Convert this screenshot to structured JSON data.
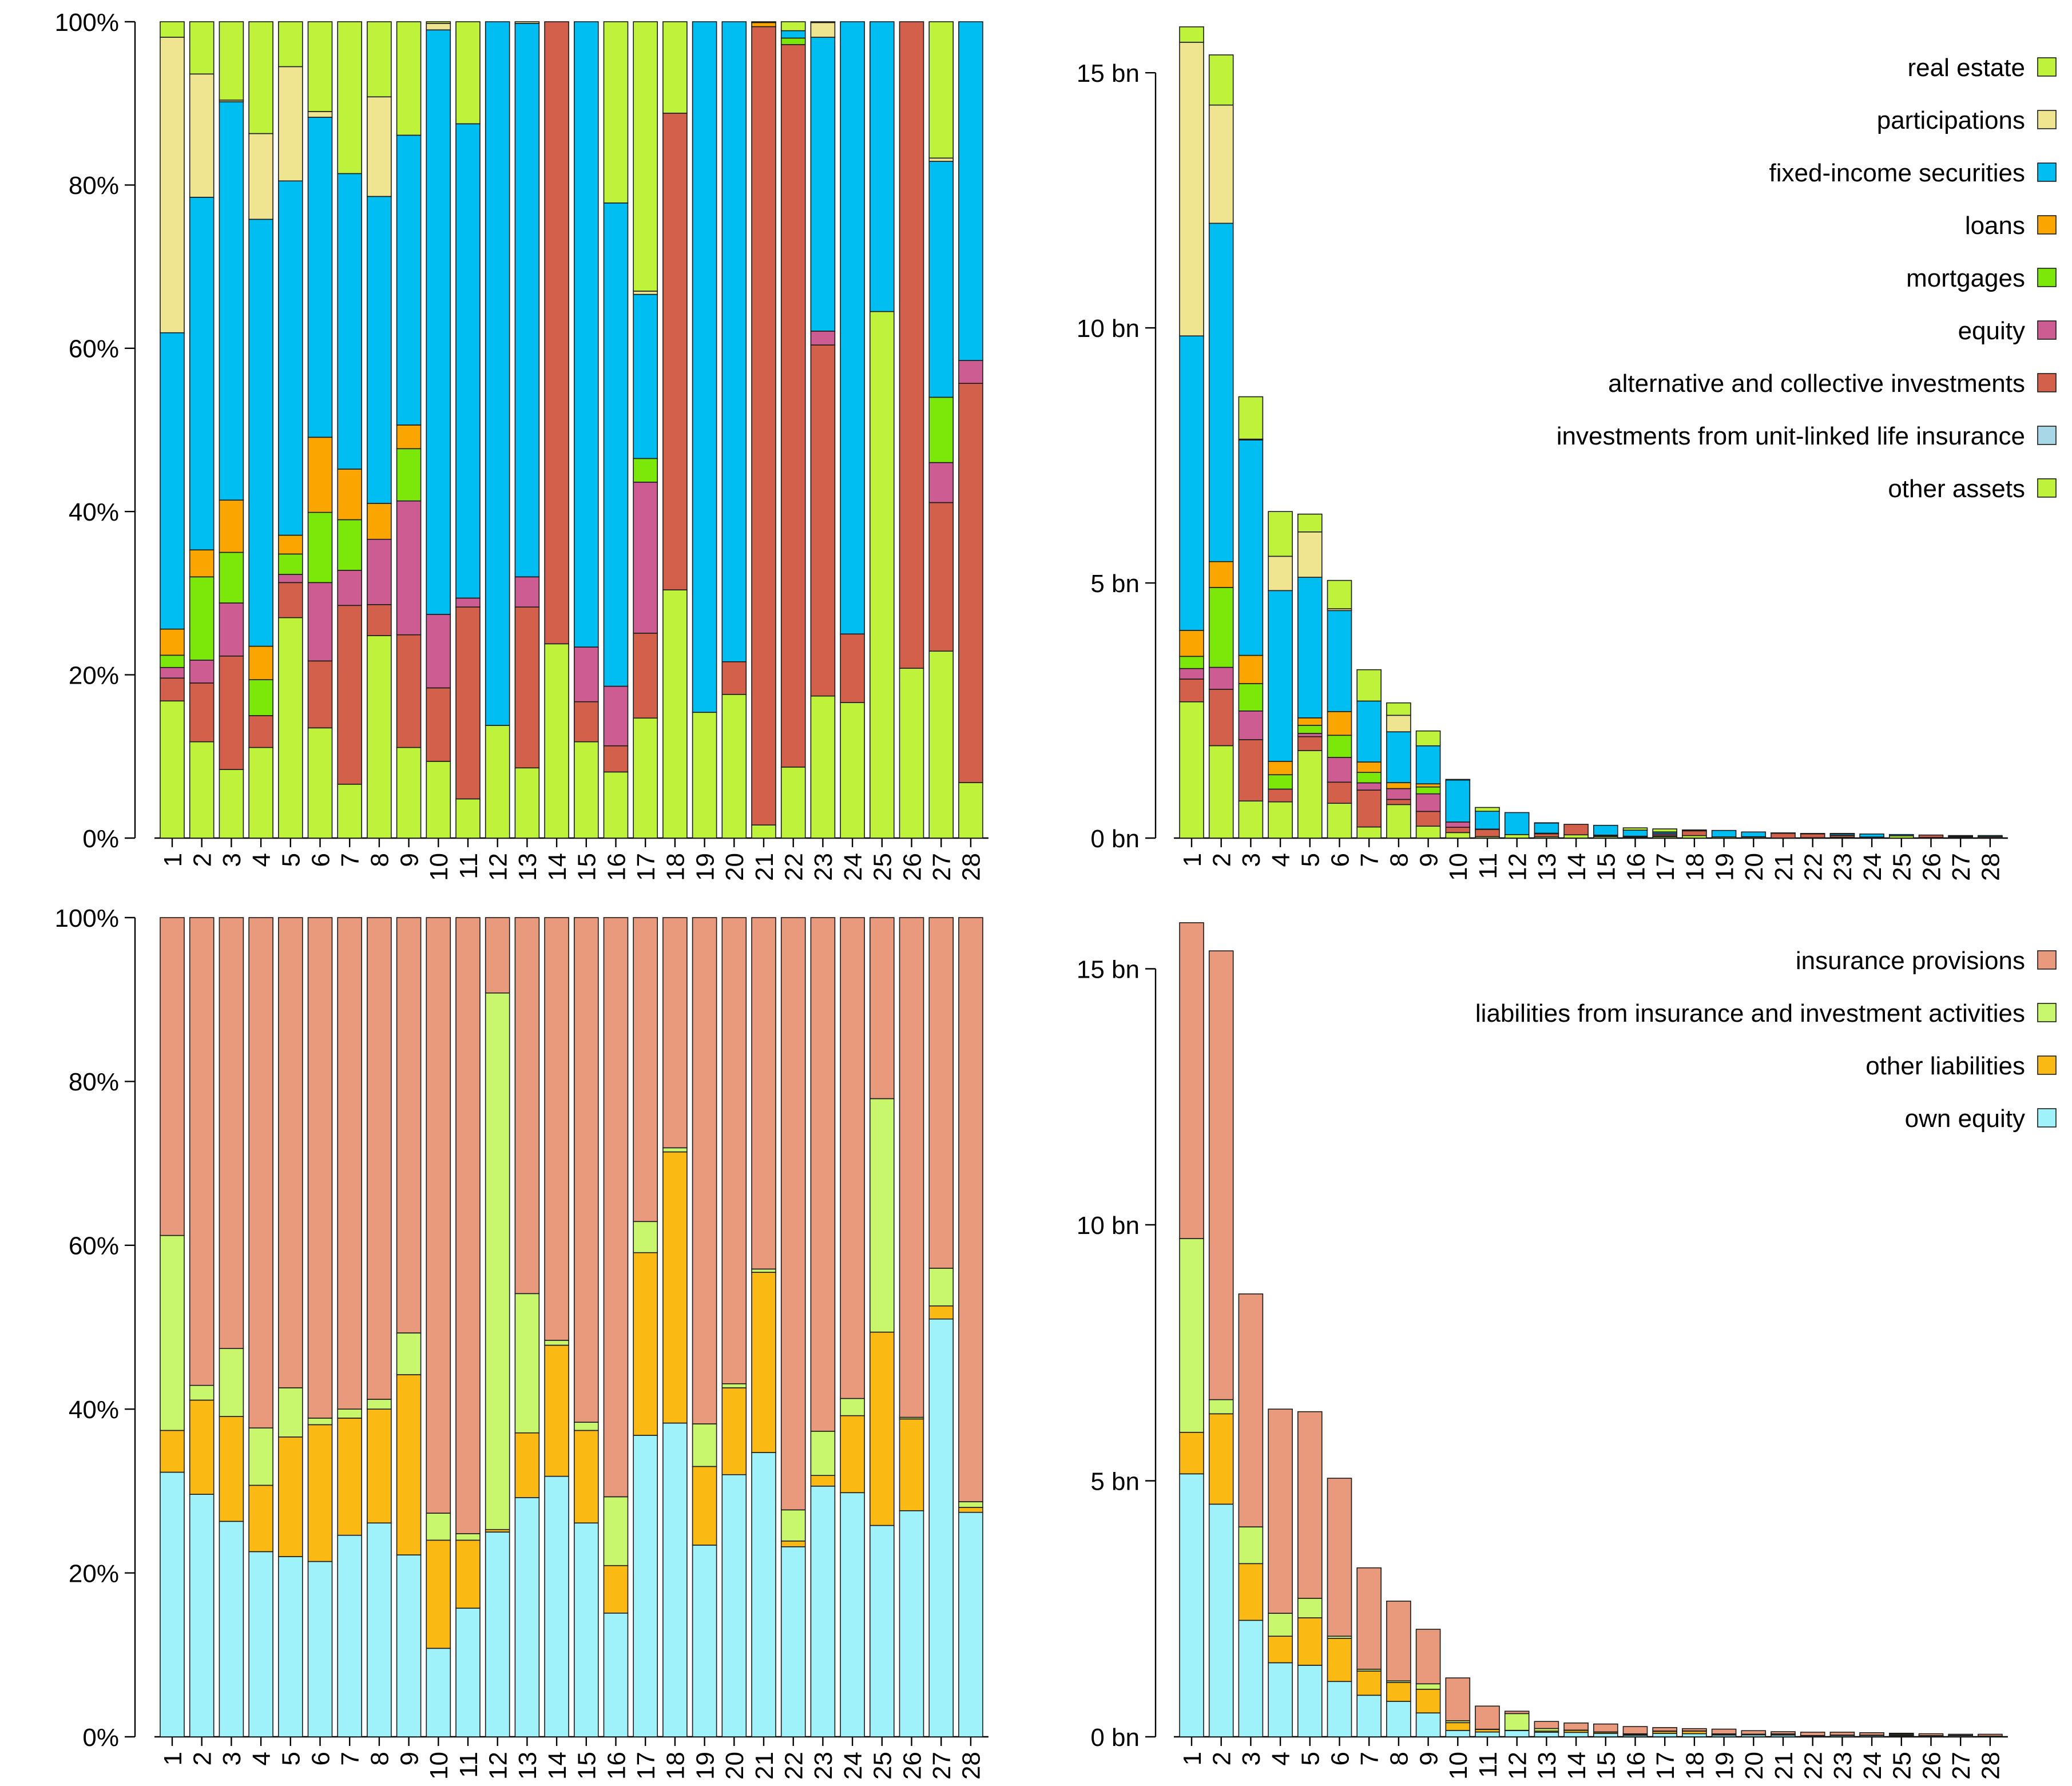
{
  "chart_data": [
    {
      "id": "assets-share",
      "type": "bar",
      "stacked": true,
      "normalized": true,
      "title": "",
      "xlabel": "",
      "ylabel": "",
      "categories": [
        "1",
        "2",
        "3",
        "4",
        "5",
        "6",
        "7",
        "8",
        "9",
        "10",
        "11",
        "12",
        "13",
        "14",
        "15",
        "16",
        "17",
        "18",
        "19",
        "20",
        "21",
        "22",
        "23",
        "24",
        "25",
        "26",
        "27",
        "28"
      ],
      "ylim": [
        0,
        100
      ],
      "yticks": [
        0,
        20,
        40,
        60,
        80,
        100
      ],
      "ytick_labels": [
        "0%",
        "20%",
        "40%",
        "60%",
        "80%",
        "100%"
      ],
      "series": [
        {
          "name": "other assets",
          "color": "#BFF23A",
          "values": [
            16.8,
            11.8,
            8.4,
            11.1,
            27.0,
            13.5,
            6.6,
            24.8,
            11.1,
            9.4,
            4.8,
            13.8,
            8.6,
            23.8,
            11.8,
            8.1,
            14.7,
            30.4,
            15.4,
            17.6,
            1.6,
            8.7,
            17.4,
            16.6,
            64.5,
            20.8,
            22.9,
            6.8
          ]
        },
        {
          "name": "investments from unit-linked life insurance",
          "color": "#A8D8E8",
          "values": [
            0,
            0,
            0,
            0,
            0,
            0,
            0,
            0,
            0,
            0,
            0,
            0,
            0,
            0,
            0,
            0,
            0,
            0,
            0,
            0,
            0,
            0,
            0,
            0,
            0,
            0,
            0,
            0
          ]
        },
        {
          "name": "alternative and collective investments",
          "color": "#D2604A",
          "values": [
            2.8,
            7.2,
            13.9,
            3.9,
            4.3,
            8.2,
            21.9,
            3.8,
            13.8,
            9.0,
            23.5,
            0,
            19.7,
            76.2,
            4.9,
            3.2,
            10.4,
            58.4,
            0,
            4.0,
            97.8,
            88.5,
            43.0,
            8.4,
            0,
            79.2,
            18.2,
            48.9
          ]
        },
        {
          "name": "equity",
          "color": "#CC5C91",
          "values": [
            1.3,
            2.8,
            6.5,
            0,
            1.0,
            9.6,
            4.3,
            8.0,
            16.4,
            9.0,
            1.1,
            0,
            3.7,
            0,
            6.7,
            7.3,
            18.5,
            0,
            0,
            0,
            0,
            0,
            1.7,
            0,
            0,
            0,
            4.9,
            2.8
          ]
        },
        {
          "name": "mortgages",
          "color": "#7CE80A",
          "values": [
            1.5,
            10.2,
            6.2,
            4.4,
            2.5,
            8.6,
            6.2,
            0,
            6.4,
            0,
            0,
            0,
            0,
            0,
            0,
            0,
            2.9,
            0,
            0,
            0,
            0,
            0.8,
            0,
            0,
            0,
            0,
            8.0,
            0
          ]
        },
        {
          "name": "loans",
          "color": "#FBA500",
          "values": [
            3.2,
            3.3,
            6.4,
            4.1,
            2.3,
            9.2,
            6.2,
            4.4,
            2.9,
            0,
            0,
            0,
            0,
            0,
            0,
            0,
            0,
            0,
            0,
            0,
            0.5,
            0,
            0,
            0,
            0,
            0,
            0,
            0
          ]
        },
        {
          "name": "fixed-income securities",
          "color": "#00BDF2",
          "values": [
            36.3,
            43.2,
            48.8,
            52.3,
            43.4,
            39.2,
            36.2,
            37.6,
            35.5,
            71.6,
            58.1,
            86.2,
            67.8,
            0,
            76.6,
            59.2,
            20.1,
            0,
            84.6,
            78.4,
            0,
            0.9,
            36.0,
            75.0,
            35.5,
            0,
            28.9,
            41.5
          ]
        },
        {
          "name": "participations",
          "color": "#EFE591",
          "values": [
            36.2,
            15.1,
            0.2,
            10.5,
            14.0,
            0.7,
            0,
            12.2,
            0,
            0.8,
            0,
            0,
            0.2,
            0,
            0,
            0,
            0.4,
            0,
            0,
            0,
            0,
            0,
            1.8,
            0,
            0,
            0,
            0.4,
            0
          ]
        },
        {
          "name": "real estate",
          "color": "#BFF23A",
          "values": [
            1.9,
            6.4,
            9.6,
            13.7,
            5.5,
            11.0,
            18.6,
            9.2,
            13.9,
            0.2,
            12.5,
            0,
            0,
            0,
            0,
            22.2,
            33.0,
            11.2,
            0,
            0,
            0.1,
            1.1,
            0.1,
            0,
            0,
            0,
            16.7,
            0
          ]
        }
      ]
    },
    {
      "id": "assets-absolute",
      "type": "bar",
      "stacked": true,
      "normalized": false,
      "title": "",
      "xlabel": "",
      "ylabel": "",
      "categories": [
        "1",
        "2",
        "3",
        "4",
        "5",
        "6",
        "7",
        "8",
        "9",
        "10",
        "11",
        "12",
        "13",
        "14",
        "15",
        "16",
        "17",
        "18",
        "19",
        "20",
        "21",
        "22",
        "23",
        "24",
        "25",
        "26",
        "27",
        "28"
      ],
      "totals_bn": [
        15.9,
        15.35,
        8.65,
        6.4,
        6.35,
        5.05,
        3.3,
        2.65,
        2.1,
        1.15,
        0.6,
        0.5,
        0.3,
        0.27,
        0.25,
        0.2,
        0.18,
        0.16,
        0.15,
        0.12,
        0.1,
        0.09,
        0.09,
        0.08,
        0.07,
        0.06,
        0.05,
        0.05
      ],
      "ylim": [
        0,
        16
      ],
      "yticks": [
        0,
        5,
        10,
        15
      ],
      "ytick_labels": [
        "0 bn",
        "5 bn",
        "10 bn",
        "15 bn"
      ],
      "legend": [
        "real estate",
        "participations",
        "fixed-income securities",
        "loans",
        "mortgages",
        "equity",
        "alternative and collective investments",
        "investments from unit-linked life insurance",
        "other assets"
      ],
      "legend_position": "top-right",
      "shares_from": "assets-share"
    },
    {
      "id": "liabilities-share",
      "type": "bar",
      "stacked": true,
      "normalized": true,
      "title": "",
      "xlabel": "",
      "ylabel": "",
      "categories": [
        "1",
        "2",
        "3",
        "4",
        "5",
        "6",
        "7",
        "8",
        "9",
        "10",
        "11",
        "12",
        "13",
        "14",
        "15",
        "16",
        "17",
        "18",
        "19",
        "20",
        "21",
        "22",
        "23",
        "24",
        "25",
        "26",
        "27",
        "28"
      ],
      "ylim": [
        0,
        100
      ],
      "yticks": [
        0,
        20,
        40,
        60,
        80,
        100
      ],
      "ytick_labels": [
        "0%",
        "20%",
        "40%",
        "60%",
        "80%",
        "100%"
      ],
      "series": [
        {
          "name": "own equity",
          "color": "#A0F2FA",
          "values": [
            32.3,
            29.6,
            26.3,
            22.6,
            22.0,
            21.4,
            24.6,
            26.1,
            22.2,
            10.8,
            15.7,
            25.0,
            29.2,
            31.8,
            26.1,
            15.1,
            36.8,
            38.3,
            23.4,
            32.0,
            34.7,
            23.2,
            30.6,
            29.8,
            25.8,
            27.6,
            51.0,
            27.4
          ]
        },
        {
          "name": "other liabilities",
          "color": "#FBB914",
          "values": [
            5.1,
            11.5,
            12.8,
            8.1,
            14.6,
            16.7,
            14.3,
            13.9,
            22.0,
            13.2,
            8.3,
            0.3,
            7.9,
            16.0,
            11.3,
            5.8,
            22.3,
            33.1,
            9.6,
            10.6,
            22.0,
            0.7,
            1.3,
            9.4,
            23.6,
            11.2,
            1.6,
            0.6
          ]
        },
        {
          "name": "liabilities from insurance and investment activities",
          "color": "#C8F76E",
          "values": [
            23.8,
            1.8,
            8.3,
            7.0,
            6.0,
            0.8,
            1.1,
            1.2,
            5.1,
            3.3,
            0.8,
            65.5,
            17.0,
            0.6,
            1.0,
            8.4,
            3.8,
            0.5,
            5.2,
            0.5,
            0.4,
            3.8,
            5.4,
            2.1,
            28.5,
            0.2,
            4.6,
            0.7
          ]
        },
        {
          "name": "insurance provisions",
          "color": "#E99A7C",
          "values": [
            38.8,
            57.1,
            52.6,
            62.3,
            57.4,
            61.1,
            60.0,
            58.8,
            50.7,
            72.7,
            75.2,
            9.2,
            45.9,
            51.6,
            61.6,
            70.7,
            37.1,
            28.1,
            61.8,
            56.9,
            42.9,
            72.3,
            62.7,
            58.7,
            22.1,
            61.0,
            42.8,
            71.3
          ]
        }
      ]
    },
    {
      "id": "liabilities-absolute",
      "type": "bar",
      "stacked": true,
      "normalized": false,
      "title": "",
      "xlabel": "",
      "ylabel": "",
      "categories": [
        "1",
        "2",
        "3",
        "4",
        "5",
        "6",
        "7",
        "8",
        "9",
        "10",
        "11",
        "12",
        "13",
        "14",
        "15",
        "16",
        "17",
        "18",
        "19",
        "20",
        "21",
        "22",
        "23",
        "24",
        "25",
        "26",
        "27",
        "28"
      ],
      "totals_bn": [
        15.9,
        15.35,
        8.65,
        6.4,
        6.35,
        5.05,
        3.3,
        2.65,
        2.1,
        1.15,
        0.6,
        0.5,
        0.3,
        0.27,
        0.25,
        0.2,
        0.18,
        0.16,
        0.15,
        0.12,
        0.1,
        0.09,
        0.09,
        0.08,
        0.07,
        0.06,
        0.05,
        0.05
      ],
      "ylim": [
        0,
        16
      ],
      "yticks": [
        0,
        5,
        10,
        15
      ],
      "ytick_labels": [
        "0 bn",
        "5 bn",
        "10 bn",
        "15 bn"
      ],
      "legend": [
        "insurance provisions",
        "liabilities from insurance and investment activities",
        "other liabilities",
        "own equity"
      ],
      "legend_position": "top-right",
      "shares_from": "liabilities-share"
    }
  ]
}
